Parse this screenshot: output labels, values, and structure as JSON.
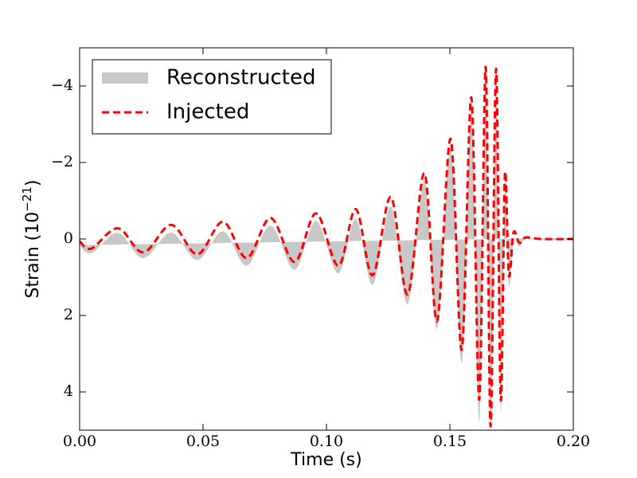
{
  "chart_data": {
    "type": "line",
    "xlabel": "Time (s)",
    "ylabel": [
      "Strain (10",
      "−21",
      ")"
    ],
    "x": [
      0,
      0.0048,
      0.0155,
      0.0258,
      0.0371,
      0.0477,
      0.0581,
      0.0677,
      0.0774,
      0.0871,
      0.0958,
      0.1048,
      0.1119,
      0.1187,
      0.1261,
      0.1329,
      0.1397,
      0.1448,
      0.1503,
      0.1548,
      0.1587,
      0.1619,
      0.1645,
      0.1665,
      0.1687,
      0.1706,
      0.1723,
      0.1739,
      0.1758,
      0.1781,
      0.1806,
      0.1871,
      0.2
    ],
    "series": [
      {
        "name": "Reconstructed",
        "color": "#c8c8c8",
        "lower": [
          -0.04,
          0.13,
          -0.4,
          0.2,
          -0.57,
          0.25,
          -0.7,
          0.3,
          -0.75,
          0.4,
          -0.87,
          0.5,
          -1.03,
          0.7,
          -1.35,
          1.2,
          -1.92,
          1.95,
          -2.82,
          2.55,
          -4.0,
          3.6,
          -4.8,
          4.8,
          -4.95,
          3.9,
          -2.0,
          0.7,
          -0.37,
          0.0,
          -0.09,
          -0.03,
          -0.03
        ],
        "upper": [
          0.16,
          0.37,
          -0.16,
          0.5,
          -0.17,
          0.55,
          -0.2,
          0.7,
          -0.35,
          0.8,
          -0.47,
          0.9,
          -0.53,
          1.2,
          -0.85,
          1.7,
          -1.52,
          2.35,
          -2.42,
          3.25,
          -3.4,
          4.8,
          -4.2,
          5.0,
          -3.95,
          4.5,
          -1.4,
          1.2,
          0.03,
          0.2,
          0.01,
          0.03,
          0.03
        ]
      },
      {
        "name": "Injected",
        "color": "#ff0000",
        "dashed": true,
        "values": [
          0.06,
          0.25,
          -0.28,
          0.35,
          -0.37,
          0.4,
          -0.45,
          0.5,
          -0.55,
          0.6,
          -0.67,
          0.7,
          -0.78,
          0.95,
          -1.1,
          1.45,
          -1.72,
          2.15,
          -2.62,
          2.9,
          -3.7,
          4.2,
          -4.5,
          4.9,
          -4.45,
          4.2,
          -1.7,
          0.95,
          -0.17,
          0.1,
          -0.04,
          0,
          0
        ]
      }
    ],
    "xlim": [
      0,
      0.2
    ],
    "xticks": [
      {
        "value": 0,
        "label": "0.00"
      },
      {
        "value": 0.05,
        "label": "0.05"
      },
      {
        "value": 0.1,
        "label": "0.10"
      },
      {
        "value": 0.15,
        "label": "0.15"
      },
      {
        "value": 0.2,
        "label": "0.20"
      }
    ],
    "ylim": [
      -5,
      5
    ],
    "y_inverted": true,
    "yticks": [
      {
        "value": -4,
        "label": "−4"
      },
      {
        "value": -2,
        "label": "−2"
      },
      0,
      2,
      4
    ],
    "grid": false,
    "legend": "upper left"
  }
}
